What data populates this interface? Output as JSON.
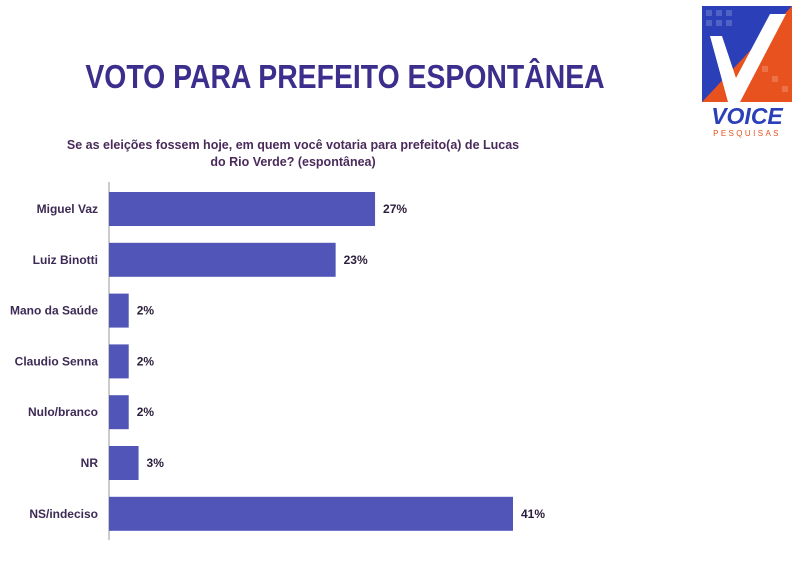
{
  "header": {
    "title": "VOTO PARA PREFEITO ESPONTÂNEA"
  },
  "logo": {
    "brand": "VOICE",
    "tagline": "PESQUISAS",
    "colors": {
      "blue": "#2a3fb8",
      "orange": "#e8521e"
    }
  },
  "chart_data": {
    "type": "bar",
    "orientation": "horizontal",
    "title": "Se as eleições fossem hoje, em quem você votaria para prefeito(a) de Lucas do Rio Verde? (espontânea)",
    "categories": [
      "Miguel Vaz",
      "Luiz Binotti",
      "Mano da Saúde",
      "Claudio Senna",
      "Nulo/branco",
      "NR",
      "NS/indeciso"
    ],
    "values": [
      27,
      23,
      2,
      2,
      2,
      3,
      41
    ],
    "value_labels": [
      "27%",
      "23%",
      "2%",
      "2%",
      "2%",
      "3%",
      "41%"
    ],
    "unit": "%",
    "xlim": [
      0,
      41
    ],
    "grid": false,
    "legend": "none",
    "bar_color": "#5155b8"
  }
}
